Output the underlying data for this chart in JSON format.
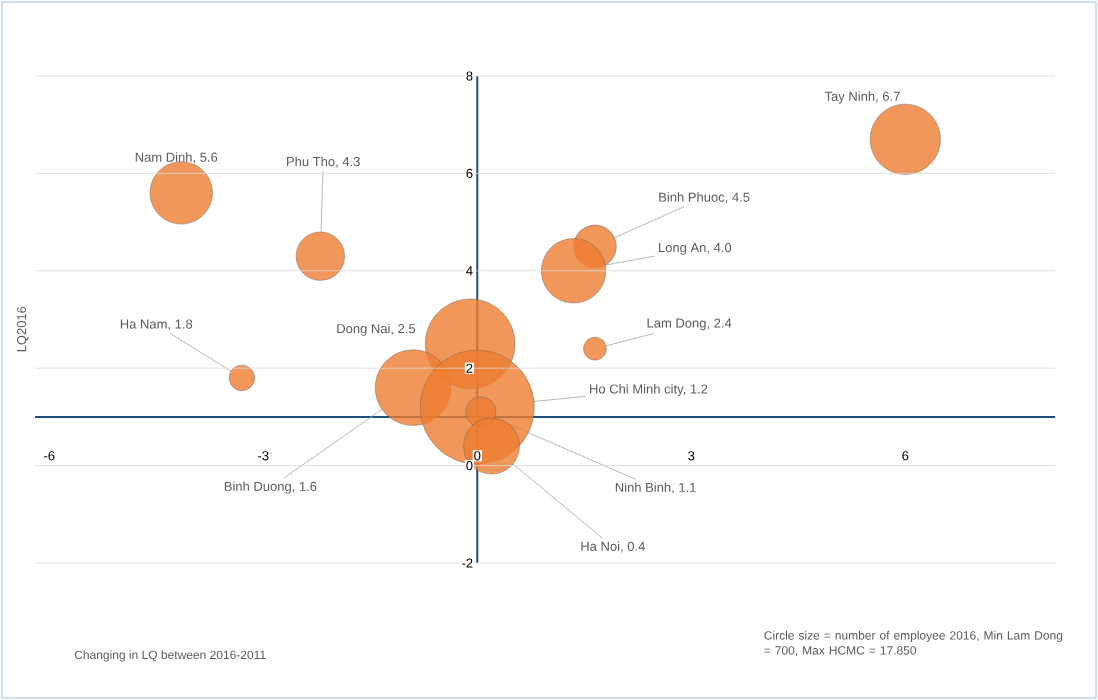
{
  "chart_data": {
    "type": "bubble",
    "x": [
      6.0,
      -4.15,
      -2.2,
      1.65,
      1.35,
      1.65,
      -3.3,
      -0.1,
      -0.9,
      0.0,
      0.05,
      0.2
    ],
    "values": [
      6.7,
      5.6,
      4.3,
      4.5,
      4.0,
      2.4,
      1.8,
      2.5,
      1.6,
      1.2,
      1.1,
      0.4
    ],
    "sizes": [
      0.38,
      0.3,
      0.18,
      0.14,
      0.32,
      0.04,
      0.05,
      0.62,
      0.44,
      1,
      0.07,
      0.24
    ],
    "value_labels": [
      "Tay Ninh, 6.7",
      "Nam Dinh, 5.6",
      "Phu Tho, 4.3",
      "Binh Phuoc, 4.5",
      "Long An, 4.0",
      "Lam Dong, 2.4",
      "Ha Nam, 1.8",
      "Dong Nai, 2.5",
      "Binh Duong, 1.6",
      "Ho Chi Minh city, 1.2",
      "Ninh Binh, 1.1",
      "Ha Noi, 0.4"
    ],
    "color": "#ed7d31",
    "ylabel": "LQ2016",
    "xlim": [
      -6.2,
      8.1
    ],
    "ylim": [
      -2,
      8
    ],
    "xticks": [
      -6,
      -3,
      0,
      3,
      6
    ],
    "yticks": [
      -2,
      0,
      2,
      4,
      6,
      8
    ],
    "grid": "y",
    "ref_lines": [
      {
        "axis": "y",
        "value": 1,
        "color": "#1f4e79"
      }
    ],
    "annotations": [
      "Changing in LQ between 2016-2011",
      "Circle size = number of employee 2016, Min Lam Dong = 700, Max HCMC = 17.850"
    ]
  }
}
